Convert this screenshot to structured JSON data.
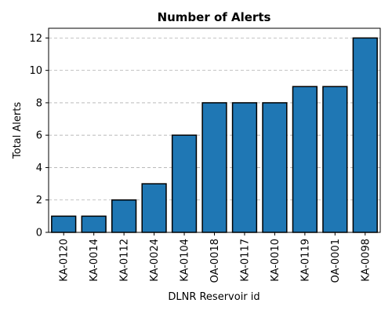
{
  "chart_data": {
    "type": "bar",
    "title": "Number of Alerts",
    "xlabel": "DLNR Reservoir id",
    "ylabel": "Total Alerts",
    "categories": [
      "KA-0120",
      "KA-0014",
      "KA-0112",
      "KA-0024",
      "KA-0104",
      "OA-0018",
      "KA-0117",
      "KA-0010",
      "KA-0119",
      "OA-0001",
      "KA-0098"
    ],
    "values": [
      1,
      1,
      2,
      3,
      6,
      8,
      8,
      8,
      9,
      9,
      12
    ],
    "ylim": [
      0,
      12.6
    ],
    "yticks": [
      0,
      2,
      4,
      6,
      8,
      10,
      12
    ],
    "grid": "y-axis dashed",
    "bar_color": "#1f77b4",
    "edge_color": "#000000"
  }
}
